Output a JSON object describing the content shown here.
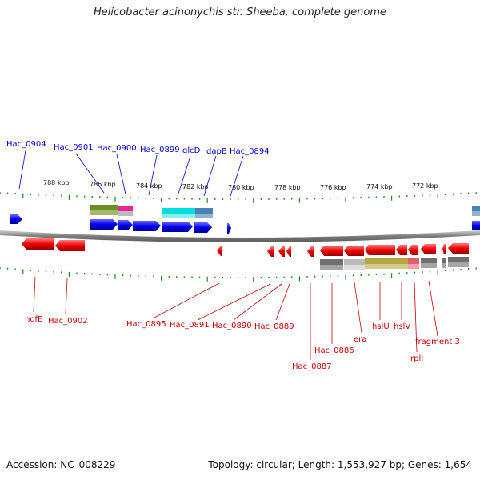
{
  "title": "Helicobacter acinonychis str. Sheeba, complete genome",
  "accession": "Accession: NC_008229",
  "summary": "Topology: circular; Length: 1,553,927 bp; Genes: 1,654",
  "colors": {
    "forward_label": "#0000cc",
    "reverse_label": "#cc0000",
    "forward_gene": "#0000ee",
    "reverse_gene": "#ee0000",
    "tick": "#228822",
    "backbone": "#888888"
  },
  "kbp_labels": [
    "788 kbp",
    "786 kbp",
    "784 kbp",
    "782 kbp",
    "780 kbp",
    "778 kbp",
    "776 kbp",
    "774 kbp",
    "772 kbp"
  ],
  "forward_labels": [
    "Hac_0904",
    "Hac_0901",
    "Hac_0900",
    "Hac_0899",
    "glcD",
    "dapB",
    "Hac_0894"
  ],
  "reverse_labels": [
    "hofE",
    "Hac_0902",
    "Hac_0895",
    "Hac_0891",
    "Hac_0890",
    "Hac_0889",
    "Hac_0887",
    "Hac_0886",
    "era",
    "hslU",
    "hslV",
    "rplI",
    "fragment 3"
  ]
}
